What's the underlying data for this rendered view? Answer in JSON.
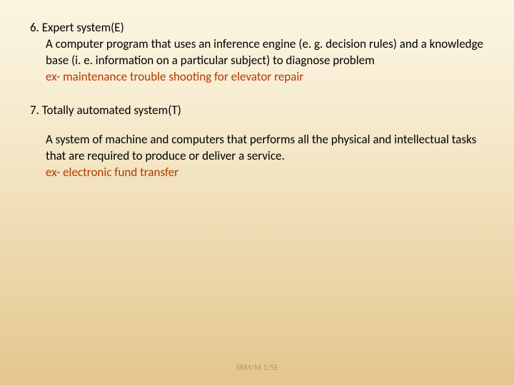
{
  "background": {
    "gradient_stops": [
      "#fbf4e0",
      "#f8efd6",
      "#f4e6c5",
      "#efdcb3",
      "#e9d1a0",
      "#e3c68d"
    ]
  },
  "typography": {
    "body_fontsize_pt": 13,
    "body_color": "#000000",
    "example_color": "#b23a00",
    "footer_fontsize_pt": 8,
    "footer_color": "#b49066",
    "font_family": "Calibri"
  },
  "items": [
    {
      "heading": "6. Expert system(E)",
      "body": "A computer program that uses an inference engine (e. g. decision rules) and a knowledge base (i. e. information on a particular subject) to diagnose problem",
      "example": "ex- maintenance trouble shooting for  elevator repair"
    },
    {
      "heading": "7. Totally automated system(T)",
      "body": "A system of machine and computers that performs all the physical and intellectual tasks that are required to produce or deliver a service.",
      "example": "ex- electronic fund transfer"
    }
  ],
  "footer": "SRM/M 1/SS"
}
